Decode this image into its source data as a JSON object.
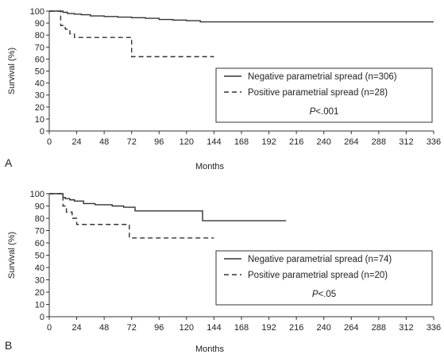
{
  "chart_data": [
    {
      "type": "line",
      "panel_label": "A",
      "xlabel": "Months",
      "ylabel": "Survival (%)",
      "xlim": [
        0,
        336
      ],
      "ylim": [
        0,
        100
      ],
      "xticks": [
        0,
        24,
        48,
        72,
        96,
        120,
        144,
        168,
        192,
        216,
        240,
        264,
        288,
        312,
        336
      ],
      "yticks": [
        0,
        10,
        20,
        30,
        40,
        50,
        60,
        70,
        80,
        90,
        100
      ],
      "legend_position": "bottom-right",
      "p_value": {
        "prefix": "P",
        "suffix": "<.001"
      },
      "series": [
        {
          "name": "Negative parametrial spread (n=306)",
          "style": "solid",
          "x": [
            0,
            8,
            12,
            16,
            22,
            28,
            36,
            48,
            60,
            72,
            84,
            96,
            108,
            120,
            132,
            336
          ],
          "y": [
            100,
            100,
            99,
            98,
            97.5,
            97,
            96,
            95.5,
            95,
            94.5,
            94,
            93,
            92.5,
            92,
            91,
            91
          ]
        },
        {
          "name": "Positive parametrial spread (n=28)",
          "style": "dashed",
          "x": [
            0,
            8,
            10,
            14,
            18,
            22,
            68,
            72,
            144
          ],
          "y": [
            100,
            100,
            88,
            85,
            81,
            78,
            78,
            62,
            62
          ]
        }
      ]
    },
    {
      "type": "line",
      "panel_label": "B",
      "xlabel": "Months",
      "ylabel": "Survival (%)",
      "xlim": [
        0,
        336
      ],
      "ylim": [
        0,
        100
      ],
      "xticks": [
        0,
        24,
        48,
        72,
        96,
        120,
        144,
        168,
        192,
        216,
        240,
        264,
        288,
        312,
        336
      ],
      "yticks": [
        0,
        10,
        20,
        30,
        40,
        50,
        60,
        70,
        80,
        90,
        100
      ],
      "legend_position": "bottom-right",
      "p_value": {
        "prefix": "P",
        "suffix": "<.05"
      },
      "series": [
        {
          "name": "Negative parametrial spread (n=74)",
          "style": "solid",
          "x": [
            0,
            8,
            12,
            14,
            18,
            22,
            30,
            40,
            55,
            65,
            75,
            132,
            134,
            207
          ],
          "y": [
            100,
            100,
            97,
            96,
            95,
            94,
            92,
            91,
            90,
            89,
            86,
            86,
            78,
            78
          ]
        },
        {
          "name": "Positive parametrial spread (n=20)",
          "style": "dashed",
          "x": [
            0,
            10,
            12,
            15,
            20,
            24,
            68,
            70,
            144
          ],
          "y": [
            100,
            100,
            90,
            85,
            80,
            75,
            75,
            64,
            64
          ]
        }
      ]
    }
  ]
}
